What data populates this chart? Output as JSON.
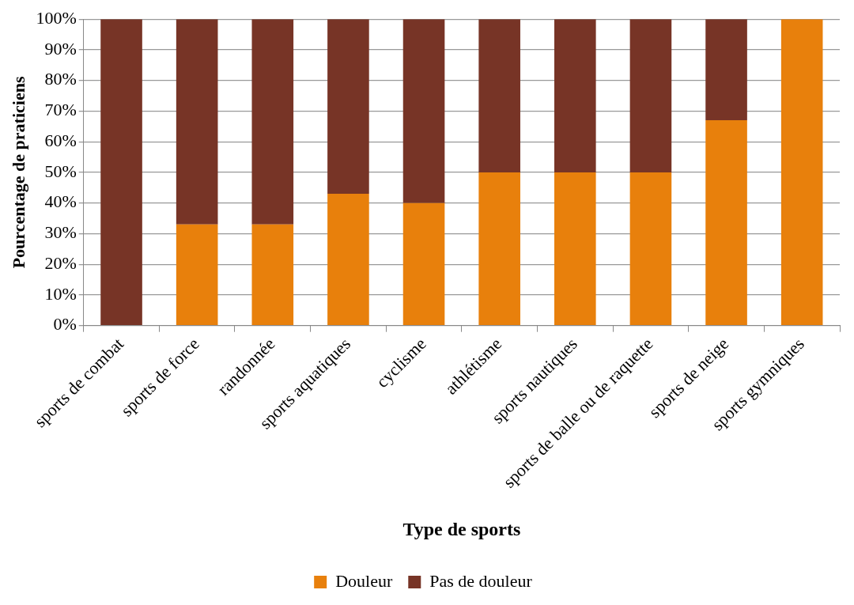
{
  "chart_data": {
    "type": "bar",
    "stacked": true,
    "xlabel": "Type de sports",
    "ylabel": "Pourcentage de praticiens",
    "categories": [
      "sports de combat",
      "sports de force",
      "randonnée",
      "sports aquatiques",
      "cyclisme",
      "athlétisme",
      "sports nautiques",
      "sports de balle ou de raquette",
      "sports de neige",
      "sports gymniques"
    ],
    "series": [
      {
        "name": "Douleur",
        "color": "#e8800c",
        "values": [
          0,
          33,
          33,
          43,
          40,
          50,
          50,
          50,
          67,
          100
        ]
      },
      {
        "name": "Pas de douleur",
        "color": "#773426",
        "values": [
          100,
          67,
          67,
          57,
          60,
          50,
          50,
          50,
          33,
          0
        ]
      }
    ],
    "ylim": [
      0,
      100
    ],
    "yticks": [
      {
        "value": 0,
        "label": "0%"
      },
      {
        "value": 10,
        "label": "10%"
      },
      {
        "value": 20,
        "label": "20%"
      },
      {
        "value": 30,
        "label": "30%"
      },
      {
        "value": 40,
        "label": "40%"
      },
      {
        "value": 50,
        "label": "50%"
      },
      {
        "value": 60,
        "label": "60%"
      },
      {
        "value": 70,
        "label": "70%"
      },
      {
        "value": 80,
        "label": "80%"
      },
      {
        "value": 90,
        "label": "90%"
      },
      {
        "value": 100,
        "label": "100%"
      }
    ],
    "grid": "y",
    "legend": "bottom"
  }
}
